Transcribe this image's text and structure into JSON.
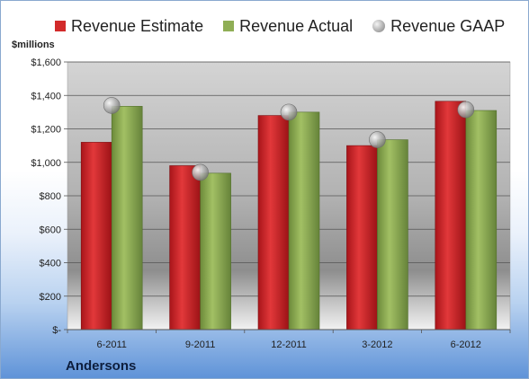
{
  "company": "Andersons",
  "chart_data": {
    "type": "bar",
    "ylabel": "$millions",
    "ylim": [
      0,
      1600
    ],
    "yticks": [
      0,
      200,
      400,
      600,
      800,
      1000,
      1200,
      1400,
      1600
    ],
    "ytick_labels": [
      "$-",
      "$200",
      "$400",
      "$600",
      "$800",
      "$1,000",
      "$1,200",
      "$1,400",
      "$1,600"
    ],
    "categories": [
      "6-2011",
      "9-2011",
      "12-2011",
      "3-2012",
      "6-2012"
    ],
    "grid": true,
    "legend": "top",
    "series": [
      {
        "name": "Revenue Estimate",
        "type": "bar",
        "color": "#d22a2a",
        "values": [
          1120,
          980,
          1280,
          1100,
          1365
        ]
      },
      {
        "name": "Revenue Actual",
        "type": "bar",
        "color": "#8fae55",
        "values": [
          1335,
          935,
          1300,
          1135,
          1310
        ]
      },
      {
        "name": "Revenue GAAP",
        "type": "scatter",
        "color": "#a8a8a8",
        "values": [
          1340,
          940,
          1300,
          1135,
          1315
        ]
      }
    ]
  }
}
